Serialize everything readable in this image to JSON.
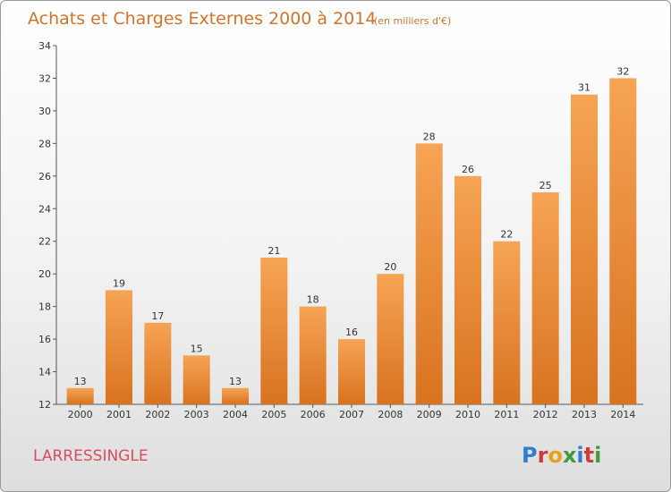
{
  "chart_data": {
    "type": "bar",
    "title": "Achats et Charges Externes 2000 à 2014",
    "subtitle": "(en milliers d'€)",
    "categories": [
      "2000",
      "2001",
      "2002",
      "2003",
      "2004",
      "2005",
      "2006",
      "2007",
      "2008",
      "2009",
      "2010",
      "2011",
      "2012",
      "2013",
      "2014"
    ],
    "values": [
      13,
      19,
      17,
      15,
      13,
      21,
      18,
      16,
      20,
      28,
      26,
      22,
      25,
      31,
      32
    ],
    "ylim": [
      12,
      34
    ],
    "yticks": [
      12,
      14,
      16,
      18,
      20,
      22,
      24,
      26,
      28,
      30,
      32,
      34
    ],
    "grid": false,
    "bar_color_light": "#f6a455",
    "bar_color_dark": "#d8731f"
  },
  "footer": {
    "town": "LARRESSINGLE",
    "brand_letters": [
      {
        "ch": "P",
        "color": "#2f7fd1"
      },
      {
        "ch": "r",
        "color": "#d23a3a"
      },
      {
        "ch": "o",
        "color": "#e8a21a"
      },
      {
        "ch": "x",
        "color": "#3d9a3d"
      },
      {
        "ch": "i",
        "color": "#2f7fd1"
      },
      {
        "ch": "t",
        "color": "#d23a3a"
      },
      {
        "ch": "i",
        "color": "#3d9a3d"
      }
    ]
  }
}
